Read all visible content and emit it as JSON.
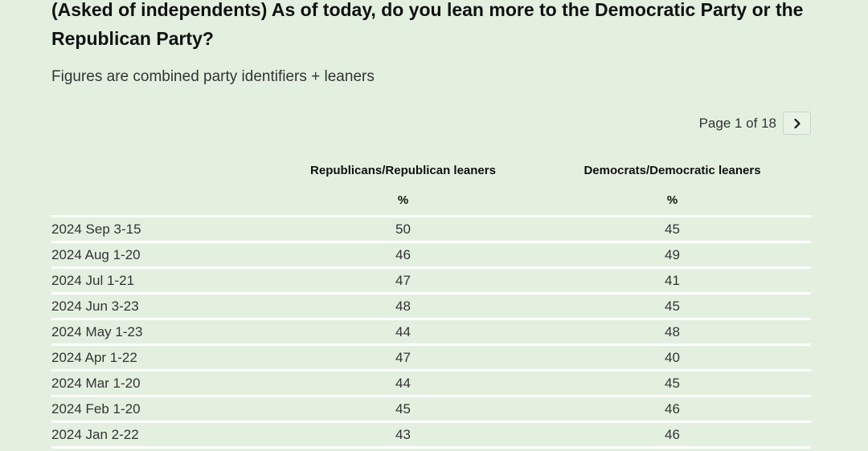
{
  "title": "(Asked of independents) As of today, do you lean more to the Democratic Party or the Republican Party?",
  "subtitle": "Figures are combined party identifiers + leaners",
  "pagination": {
    "label": "Page 1 of 18",
    "next_icon": "chevron-right-icon"
  },
  "table": {
    "columns": [
      "",
      "Republicans/Republican leaners",
      "Democrats/Democratic leaners"
    ],
    "units": [
      "",
      "%",
      "%"
    ],
    "rows": [
      {
        "date": "2024 Sep 3-15",
        "rep": "50",
        "dem": "45"
      },
      {
        "date": "2024 Aug 1-20",
        "rep": "46",
        "dem": "49"
      },
      {
        "date": "2024 Jul 1-21",
        "rep": "47",
        "dem": "41"
      },
      {
        "date": "2024 Jun 3-23",
        "rep": "48",
        "dem": "45"
      },
      {
        "date": "2024 May 1-23",
        "rep": "44",
        "dem": "48"
      },
      {
        "date": "2024 Apr 1-22",
        "rep": "47",
        "dem": "40"
      },
      {
        "date": "2024 Mar 1-20",
        "rep": "44",
        "dem": "45"
      },
      {
        "date": "2024 Feb 1-20",
        "rep": "45",
        "dem": "46"
      },
      {
        "date": "2024 Jan 2-22",
        "rep": "43",
        "dem": "46"
      }
    ]
  }
}
